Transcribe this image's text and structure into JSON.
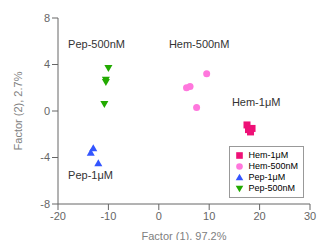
{
  "chart_data": {
    "type": "scatter",
    "xlabel": "Factor (1), 97.2%",
    "ylabel": "Factor (2), 2.7%",
    "xlim": [
      -20,
      30
    ],
    "ylim": [
      -8,
      8
    ],
    "xticks": [
      -20,
      -10,
      0,
      10,
      20,
      30
    ],
    "yticks": [
      -8,
      -4,
      0,
      4,
      8
    ],
    "grid": false,
    "legend": "lower right",
    "series": [
      {
        "name": "Hem-1μM",
        "color": "#EE1177",
        "marker": "square",
        "x": [
          17.5,
          18.5,
          18.2,
          17.8
        ],
        "values": [
          -1.2,
          -1.5,
          -1.8,
          -1.6
        ]
      },
      {
        "name": "Hem-500nM",
        "color": "#FF77DD",
        "marker": "circle",
        "x": [
          5.5,
          6.2,
          9.5,
          7.5
        ],
        "values": [
          2.0,
          2.1,
          3.2,
          0.3
        ]
      },
      {
        "name": "Pep-1μM",
        "color": "#3355FF",
        "marker": "triangle_up",
        "x": [
          -13.0,
          -13.5,
          -12.0
        ],
        "values": [
          -3.2,
          -3.6,
          -4.5
        ]
      },
      {
        "name": "Pep-500nM",
        "color": "#22AA00",
        "marker": "triangle_down",
        "x": [
          -10.0,
          -10.5,
          -10.5,
          -10.8
        ],
        "values": [
          3.7,
          2.7,
          2.5,
          0.6
        ]
      }
    ],
    "annotations": [
      {
        "text": "Pep-500nM",
        "x": -18,
        "y": 5.8
      },
      {
        "text": "Hem-500nM",
        "x": 2,
        "y": 5.8
      },
      {
        "text": "Hem-1μM",
        "x": 14.5,
        "y": 0.8
      },
      {
        "text": "Pep-1μM",
        "x": -18,
        "y": -5.5
      }
    ]
  }
}
